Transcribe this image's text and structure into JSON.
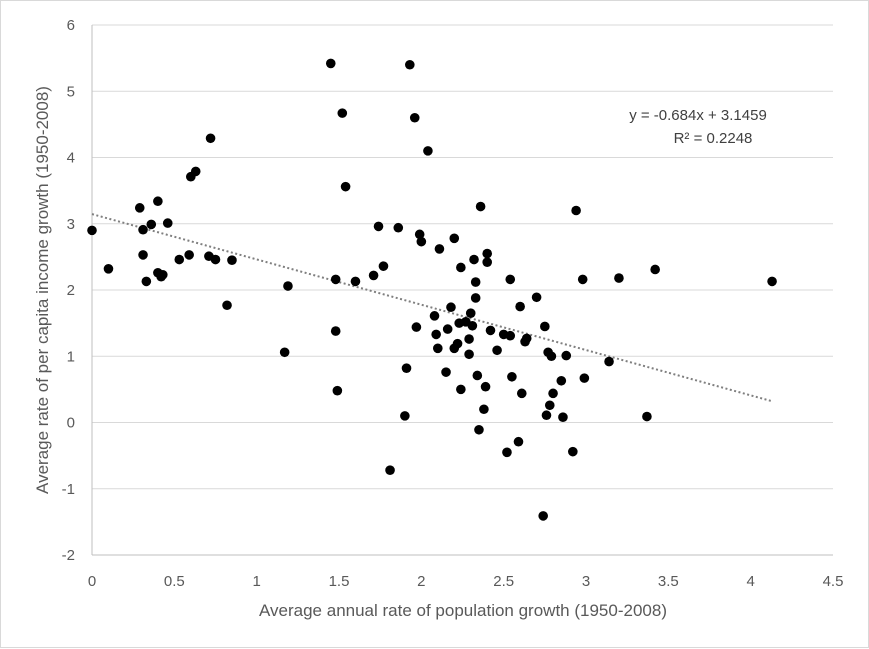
{
  "chart_data": {
    "type": "scatter",
    "title": "",
    "xlabel": "Average annual rate of population growth (1950-2008)",
    "ylabel": "Average rate of per capita income growth (1950-2008)",
    "xlim": [
      0,
      4.5
    ],
    "ylim": [
      -2,
      6
    ],
    "xticks": [
      0,
      0.5,
      1,
      1.5,
      2,
      2.5,
      3,
      3.5,
      4,
      4.5
    ],
    "yticks": [
      -2,
      -1,
      0,
      1,
      2,
      3,
      4,
      5,
      6
    ],
    "xtick_labels": [
      "0",
      "0.5",
      "1",
      "1.5",
      "2",
      "2.5",
      "3",
      "3.5",
      "4",
      "4.5"
    ],
    "ytick_labels": [
      "-2",
      "-1",
      "0",
      "1",
      "2",
      "3",
      "4",
      "5",
      "6"
    ],
    "grid": "horizontal",
    "colors": {
      "points": "#000000",
      "trendline": "#7f7f7f",
      "grid": "#d9d9d9",
      "axis": "#bfbfbf"
    },
    "trendline": {
      "slope": -0.684,
      "intercept": 3.1459,
      "x_range": [
        0,
        4.13
      ],
      "equation_label": "y = -0.684x + 3.1459",
      "r2_label": "R² = 0.2248"
    },
    "points": [
      [
        0.0,
        2.9
      ],
      [
        0.1,
        2.32
      ],
      [
        0.29,
        3.24
      ],
      [
        0.31,
        2.91
      ],
      [
        0.31,
        2.53
      ],
      [
        0.33,
        2.13
      ],
      [
        0.36,
        2.99
      ],
      [
        0.4,
        3.34
      ],
      [
        0.4,
        2.26
      ],
      [
        0.42,
        2.2
      ],
      [
        0.43,
        2.23
      ],
      [
        0.46,
        3.01
      ],
      [
        0.53,
        2.46
      ],
      [
        0.59,
        2.53
      ],
      [
        0.6,
        3.71
      ],
      [
        0.63,
        3.79
      ],
      [
        0.71,
        2.51
      ],
      [
        0.72,
        4.29
      ],
      [
        0.75,
        2.46
      ],
      [
        0.82,
        1.77
      ],
      [
        0.85,
        2.45
      ],
      [
        1.17,
        1.06
      ],
      [
        1.19,
        2.06
      ],
      [
        1.45,
        5.42
      ],
      [
        1.48,
        1.38
      ],
      [
        1.48,
        2.16
      ],
      [
        1.49,
        0.48
      ],
      [
        1.52,
        4.67
      ],
      [
        1.54,
        3.56
      ],
      [
        1.6,
        2.13
      ],
      [
        1.71,
        2.22
      ],
      [
        1.74,
        2.96
      ],
      [
        1.77,
        2.36
      ],
      [
        1.81,
        -0.72
      ],
      [
        1.86,
        2.94
      ],
      [
        1.9,
        0.1
      ],
      [
        1.91,
        0.82
      ],
      [
        1.93,
        5.4
      ],
      [
        1.96,
        4.6
      ],
      [
        1.97,
        1.44
      ],
      [
        1.99,
        2.84
      ],
      [
        2.0,
        2.73
      ],
      [
        2.04,
        4.1
      ],
      [
        2.08,
        1.61
      ],
      [
        2.09,
        1.33
      ],
      [
        2.1,
        1.12
      ],
      [
        2.11,
        2.62
      ],
      [
        2.15,
        0.76
      ],
      [
        2.16,
        1.41
      ],
      [
        2.18,
        1.74
      ],
      [
        2.2,
        2.78
      ],
      [
        2.2,
        1.12
      ],
      [
        2.22,
        1.19
      ],
      [
        2.23,
        1.5
      ],
      [
        2.24,
        0.5
      ],
      [
        2.24,
        2.34
      ],
      [
        2.27,
        1.52
      ],
      [
        2.29,
        1.03
      ],
      [
        2.29,
        1.26
      ],
      [
        2.3,
        1.65
      ],
      [
        2.31,
        1.46
      ],
      [
        2.32,
        2.46
      ],
      [
        2.33,
        2.12
      ],
      [
        2.33,
        1.88
      ],
      [
        2.34,
        0.71
      ],
      [
        2.35,
        -0.11
      ],
      [
        2.36,
        3.26
      ],
      [
        2.38,
        0.2
      ],
      [
        2.39,
        0.54
      ],
      [
        2.4,
        2.42
      ],
      [
        2.4,
        2.55
      ],
      [
        2.42,
        1.39
      ],
      [
        2.46,
        1.09
      ],
      [
        2.5,
        1.33
      ],
      [
        2.52,
        -0.45
      ],
      [
        2.54,
        1.31
      ],
      [
        2.54,
        2.16
      ],
      [
        2.55,
        0.69
      ],
      [
        2.59,
        -0.29
      ],
      [
        2.6,
        1.75
      ],
      [
        2.61,
        0.44
      ],
      [
        2.63,
        1.22
      ],
      [
        2.64,
        1.27
      ],
      [
        2.7,
        1.89
      ],
      [
        2.74,
        -1.41
      ],
      [
        2.75,
        1.45
      ],
      [
        2.76,
        0.11
      ],
      [
        2.77,
        1.06
      ],
      [
        2.78,
        0.26
      ],
      [
        2.79,
        1.0
      ],
      [
        2.8,
        0.44
      ],
      [
        2.85,
        0.63
      ],
      [
        2.86,
        0.08
      ],
      [
        2.88,
        1.01
      ],
      [
        2.92,
        -0.44
      ],
      [
        2.94,
        3.2
      ],
      [
        2.98,
        2.16
      ],
      [
        2.99,
        0.67
      ],
      [
        3.14,
        0.92
      ],
      [
        3.2,
        2.18
      ],
      [
        3.37,
        0.09
      ],
      [
        3.42,
        2.31
      ],
      [
        4.13,
        2.13
      ]
    ]
  }
}
